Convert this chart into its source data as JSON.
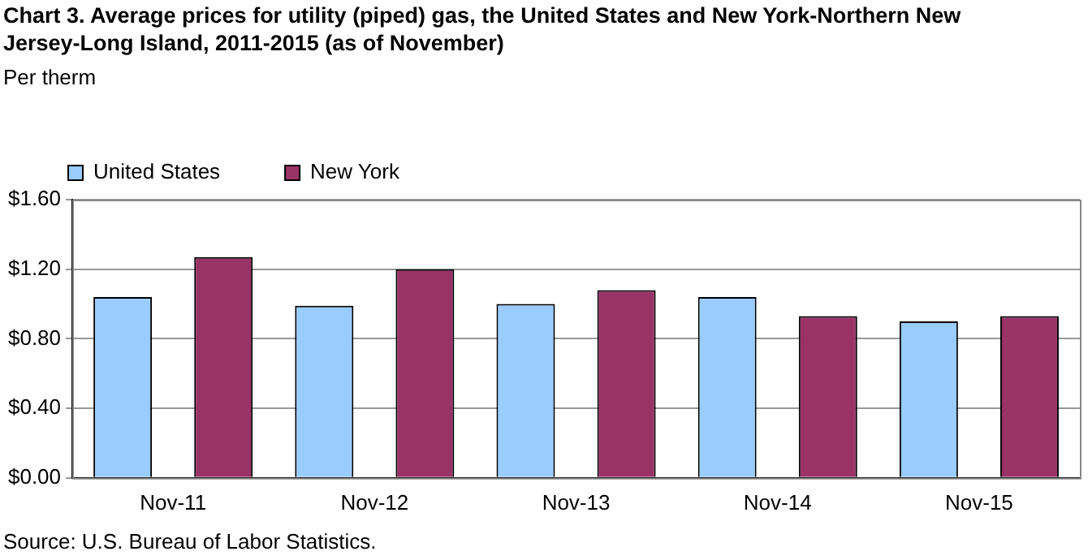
{
  "chart_data": {
    "type": "bar",
    "title": "Chart 3. Average prices for utility (piped) gas, the United States and New York-Northern New Jersey-Long Island, 2011-2015 (as of November)",
    "ylabel": "Per therm",
    "annotations": [
      "Source: U.S. Bureau of Labor Statistics."
    ],
    "categories": [
      "Nov-11",
      "Nov-12",
      "Nov-13",
      "Nov-14",
      "Nov-15"
    ],
    "series": [
      {
        "name": "United States",
        "color": "#99ccff",
        "values": [
          1.04,
          0.99,
          1.0,
          1.04,
          0.9
        ]
      },
      {
        "name": "New York",
        "color": "#993366",
        "values": [
          1.27,
          1.2,
          1.08,
          0.93,
          0.93
        ]
      }
    ],
    "ylim": [
      0,
      1.6
    ],
    "yticks": [
      {
        "value": 0,
        "label": "$0.00"
      },
      {
        "value": 0.4,
        "label": "$0.40"
      },
      {
        "value": 0.8,
        "label": "$0.80"
      },
      {
        "value": 1.2,
        "label": "$1.20"
      },
      {
        "value": 1.6,
        "label": "$1.60"
      }
    ],
    "grid": "y",
    "legend": "top left"
  }
}
